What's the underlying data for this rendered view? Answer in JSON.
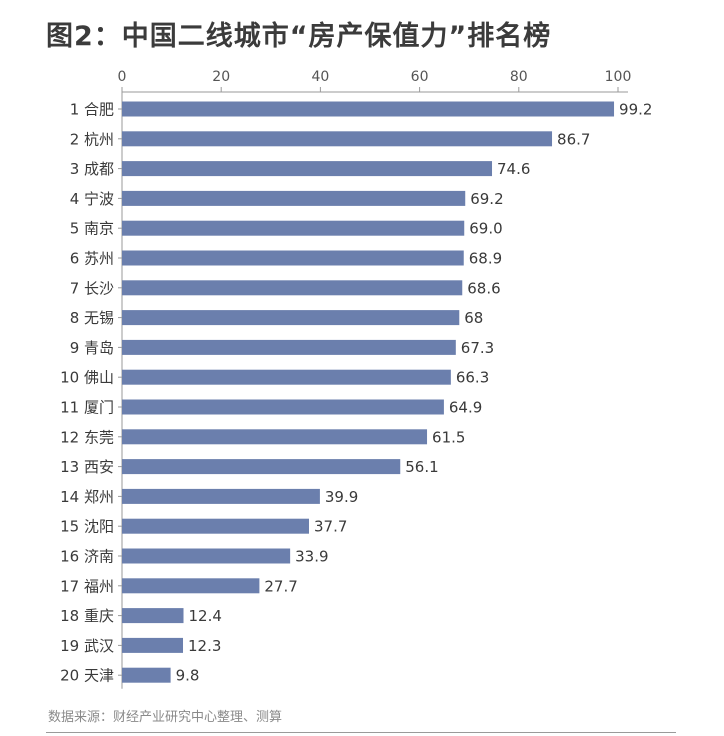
{
  "title": "图2：中国二线城市“房产保值力”排名榜",
  "source": "数据来源：财经产业研究中心整理、测算",
  "colors": {
    "bar": "#6b7fad",
    "axis": "#9a9a9a",
    "text": "#3a3a3a"
  },
  "chart_data": {
    "type": "bar",
    "orientation": "horizontal",
    "xlim": [
      0,
      100
    ],
    "ticks": [
      0,
      20,
      40,
      60,
      80,
      100
    ],
    "tick_labels": [
      "0",
      "20",
      "40",
      "60",
      "80",
      "100"
    ],
    "categories": [
      "1 合肥",
      "2 杭州",
      "3 成都",
      "4 宁波",
      "5 南京",
      "6 苏州",
      "7 长沙",
      "8 无锡",
      "9 青岛",
      "10 佛山",
      "11 厦门",
      "12 东莞",
      "13 西安",
      "14 郑州",
      "15 沈阳",
      "16 济南",
      "17 福州",
      "18 重庆",
      "19 武汉",
      "20 天津"
    ],
    "values": [
      99.2,
      86.7,
      74.6,
      69.2,
      69.0,
      68.9,
      68.6,
      68,
      67.3,
      66.3,
      64.9,
      61.5,
      56.1,
      39.9,
      37.7,
      33.9,
      27.7,
      12.4,
      12.3,
      9.8
    ],
    "value_labels": [
      "99.2",
      "86.7",
      "74.6",
      "69.2",
      "69.0",
      "68.9",
      "68.6",
      "68",
      "67.3",
      "66.3",
      "64.9",
      "61.5",
      "56.1",
      "39.9",
      "37.7",
      "33.9",
      "27.7",
      "12.4",
      "12.3",
      "9.8"
    ]
  }
}
